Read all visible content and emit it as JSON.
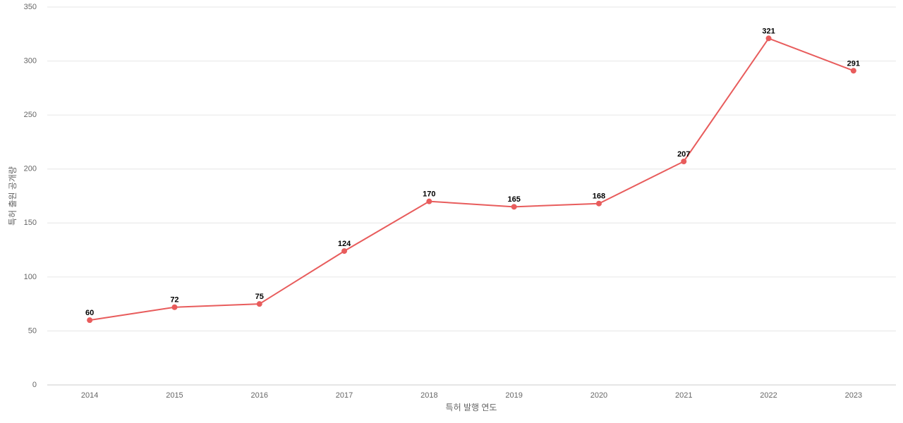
{
  "chart_data": {
    "type": "line",
    "x_label": "특허 발행 연도",
    "y_label": "특허 출원 공개량",
    "categories": [
      "2014",
      "2015",
      "2016",
      "2017",
      "2018",
      "2019",
      "2020",
      "2021",
      "2022",
      "2023"
    ],
    "series": [
      {
        "color": "#e85c5c",
        "values": [
          60,
          72,
          75,
          124,
          170,
          165,
          168,
          207,
          321,
          291
        ]
      }
    ],
    "ylim": [
      0,
      350
    ],
    "yticks": [
      0,
      50,
      100,
      150,
      200,
      250,
      300,
      350
    ],
    "grid": true
  }
}
